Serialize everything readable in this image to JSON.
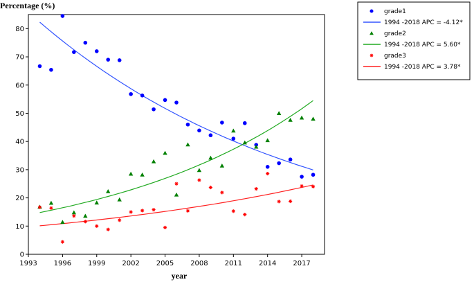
{
  "chart_data": {
    "type": "scatter",
    "ylabel": "Percentage (%)",
    "xlabel": "year",
    "xlim": [
      1993,
      2019
    ],
    "ylim": [
      0,
      85
    ],
    "xticks": [
      1993,
      1996,
      1999,
      2002,
      2005,
      2008,
      2011,
      2014,
      2017
    ],
    "yticks": [
      0,
      10,
      20,
      30,
      40,
      50,
      60,
      70,
      80
    ],
    "grid": false,
    "legend_placement": "outside-right-top",
    "colors": {
      "grade1": "#0000ff",
      "grade2": "#008000",
      "grade3": "#ff0000",
      "fit1": "#3355ff",
      "fit2": "#22aa22",
      "fit3": "#ff2222"
    },
    "series": [
      {
        "name": "grade1",
        "marker": "circle",
        "x": [
          1994,
          1995,
          1996,
          1997,
          1998,
          1999,
          2000,
          2001,
          2002,
          2003,
          2004,
          2005,
          2006,
          2007,
          2008,
          2009,
          2010,
          2011,
          2012,
          2013,
          2014,
          2015,
          2016,
          2017,
          2018
        ],
        "y": [
          66.7,
          65.4,
          84.5,
          71.7,
          75.0,
          72.0,
          69.0,
          68.8,
          56.8,
          56.3,
          51.4,
          54.7,
          53.8,
          46.0,
          43.9,
          42.2,
          46.7,
          41.0,
          46.5,
          38.8,
          31.0,
          32.3,
          33.6,
          27.5,
          28.2
        ]
      },
      {
        "name": "grade2",
        "marker": "triangle",
        "x": [
          1994,
          1995,
          1996,
          1997,
          1998,
          1999,
          2000,
          2001,
          2002,
          2003,
          2004,
          2005,
          2006,
          2007,
          2008,
          2009,
          2010,
          2011,
          2012,
          2013,
          2014,
          2015,
          2016,
          2017,
          2018
        ],
        "y": [
          16.8,
          18.2,
          11.4,
          14.8,
          13.6,
          18.3,
          22.3,
          19.4,
          28.5,
          28.2,
          32.9,
          35.9,
          21.1,
          38.9,
          29.8,
          34.2,
          31.4,
          43.8,
          39.6,
          38.1,
          40.4,
          50.0,
          47.6,
          48.4,
          48.0
        ]
      },
      {
        "name": "grade3",
        "marker": "star",
        "x": [
          1994,
          1995,
          1996,
          1997,
          1998,
          1999,
          2000,
          2001,
          2002,
          2003,
          2004,
          2005,
          2006,
          2007,
          2008,
          2009,
          2010,
          2011,
          2012,
          2013,
          2014,
          2015,
          2016,
          2017,
          2018
        ],
        "y": [
          16.7,
          16.4,
          4.4,
          13.6,
          11.6,
          10.0,
          8.8,
          12.1,
          15.0,
          15.5,
          15.8,
          9.5,
          25.0,
          15.4,
          26.3,
          23.7,
          21.9,
          15.3,
          14.1,
          23.2,
          28.6,
          18.7,
          18.8,
          24.2,
          24.0
        ]
      }
    ],
    "fits": [
      {
        "name": "1994   -2018   APC  = -4.12*",
        "start": 1994,
        "end": 2018,
        "y_start": 82.3,
        "y_end": 29.9,
        "series": "grade1"
      },
      {
        "name": "1994   -2018   APC  = 5.60*",
        "start": 1994,
        "end": 2018,
        "y_start": 14.8,
        "y_end": 54.5,
        "series": "grade2"
      },
      {
        "name": "1994   -2018   APC  = 3.78*",
        "start": 1994,
        "end": 2018,
        "y_start": 10.1,
        "y_end": 24.6,
        "series": "grade3"
      }
    ]
  }
}
